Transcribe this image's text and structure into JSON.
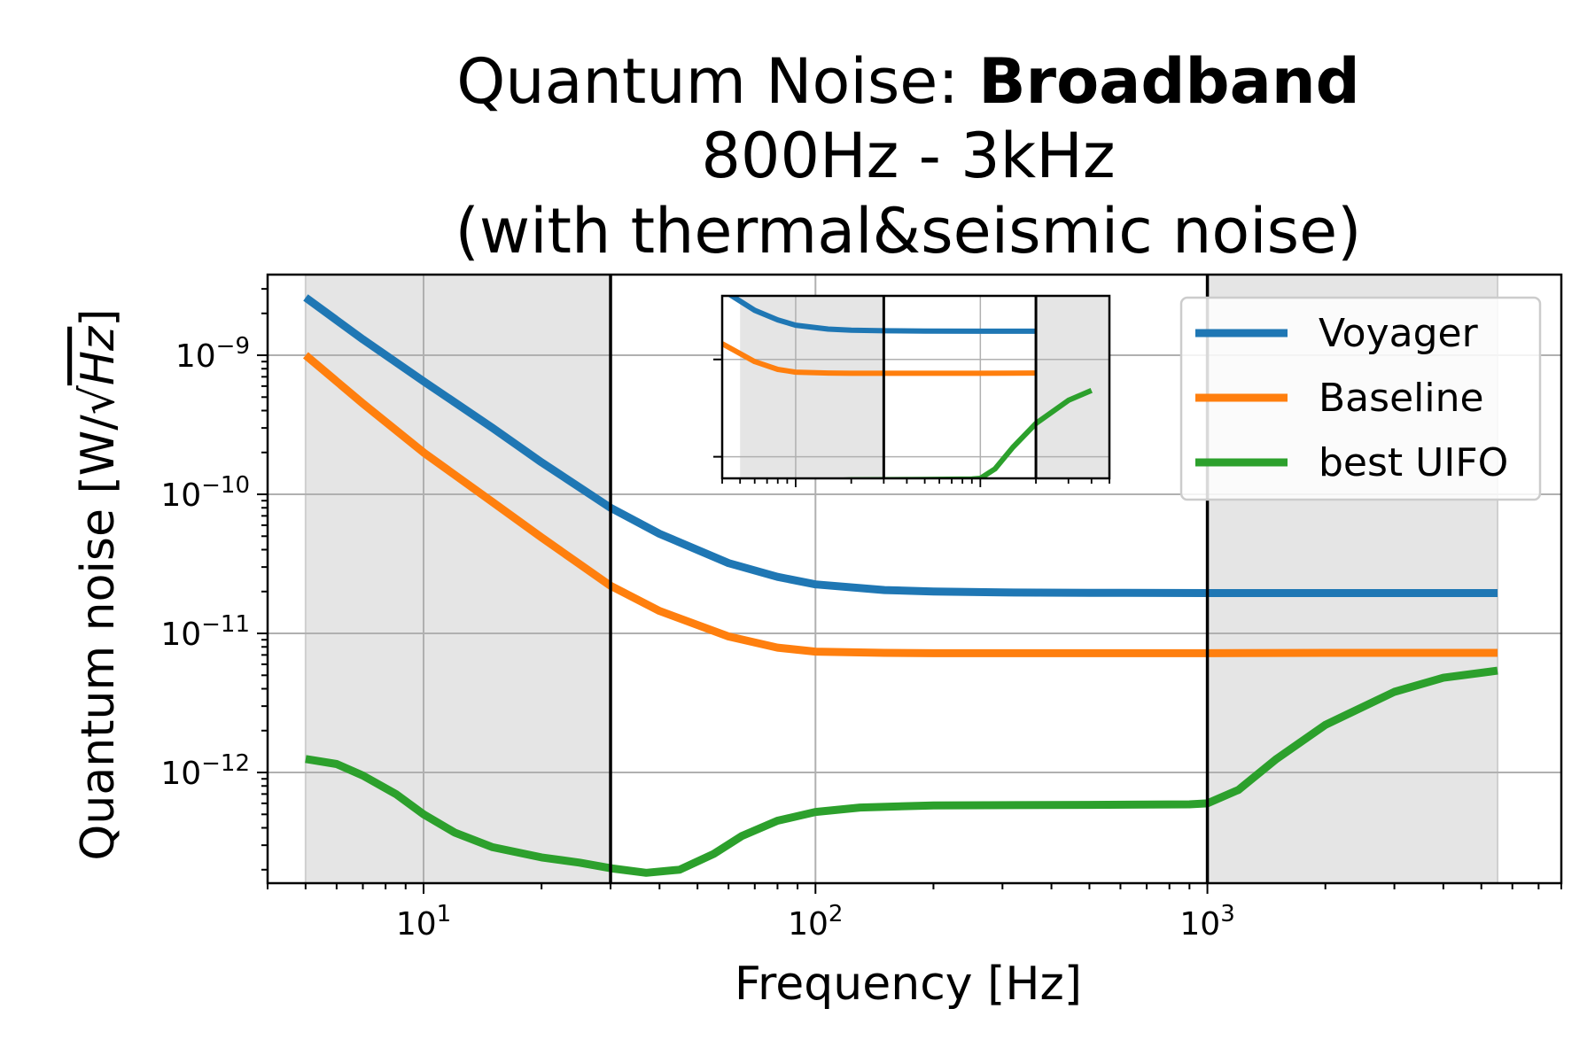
{
  "chart_data": {
    "type": "line",
    "title": {
      "prefix": "Quantum Noise: ",
      "bold": "Broadband",
      "line2": "800Hz - 3kHz",
      "line3": "(with thermal&seismic noise)"
    },
    "xlabel": "Frequency [Hz]",
    "ylabel": {
      "prefix": "Quantum noise [W/",
      "radical": "√",
      "radicand": "Hz",
      "suffix": "]"
    },
    "xscale": "log",
    "yscale": "log",
    "xlim": [
      4,
      8000
    ],
    "ylim": [
      1.6e-13,
      3.8e-09
    ],
    "x_ticks": [
      {
        "value": 10,
        "base": "10",
        "exp": "1"
      },
      {
        "value": 100,
        "base": "10",
        "exp": "2"
      },
      {
        "value": 1000,
        "base": "10",
        "exp": "3"
      }
    ],
    "y_ticks": [
      {
        "value": 1e-12,
        "base": "10",
        "exp": "−12"
      },
      {
        "value": 1e-11,
        "base": "10",
        "exp": "−11"
      },
      {
        "value": 1e-10,
        "base": "10",
        "exp": "−10"
      },
      {
        "value": 1e-09,
        "base": "10",
        "exp": "−9"
      }
    ],
    "grid": true,
    "shaded_regions": [
      [
        5,
        30
      ],
      [
        1000,
        5500
      ]
    ],
    "vertical_lines": [
      30,
      1000
    ],
    "legend_position": "top-right",
    "series": [
      {
        "name": "Voyager",
        "color": "#1f77b4",
        "points": [
          [
            5,
            2.6e-09
          ],
          [
            7,
            1.3e-09
          ],
          [
            10,
            6.5e-10
          ],
          [
            15,
            3e-10
          ],
          [
            20,
            1.7e-10
          ],
          [
            30,
            8e-11
          ],
          [
            40,
            5.2e-11
          ],
          [
            60,
            3.2e-11
          ],
          [
            80,
            2.55e-11
          ],
          [
            100,
            2.25e-11
          ],
          [
            150,
            2.05e-11
          ],
          [
            200,
            2e-11
          ],
          [
            300,
            1.97e-11
          ],
          [
            500,
            1.96e-11
          ],
          [
            1000,
            1.95e-11
          ],
          [
            2000,
            1.95e-11
          ],
          [
            5500,
            1.95e-11
          ]
        ]
      },
      {
        "name": "Baseline",
        "color": "#ff7f0e",
        "points": [
          [
            5,
            1e-09
          ],
          [
            7,
            4.5e-10
          ],
          [
            10,
            2e-10
          ],
          [
            15,
            8.8e-11
          ],
          [
            20,
            4.9e-11
          ],
          [
            30,
            2.2e-11
          ],
          [
            40,
            1.45e-11
          ],
          [
            60,
            9.5e-12
          ],
          [
            80,
            7.9e-12
          ],
          [
            100,
            7.4e-12
          ],
          [
            150,
            7.25e-12
          ],
          [
            200,
            7.2e-12
          ],
          [
            500,
            7.2e-12
          ],
          [
            1000,
            7.2e-12
          ],
          [
            2000,
            7.25e-12
          ],
          [
            5500,
            7.25e-12
          ]
        ]
      },
      {
        "name": "best UIFO",
        "color": "#2ca02c",
        "points": [
          [
            5,
            1.25e-12
          ],
          [
            6,
            1.15e-12
          ],
          [
            7,
            9.5e-13
          ],
          [
            8.5,
            7e-13
          ],
          [
            10,
            5e-13
          ],
          [
            12,
            3.7e-13
          ],
          [
            15,
            2.9e-13
          ],
          [
            20,
            2.45e-13
          ],
          [
            25,
            2.25e-13
          ],
          [
            30,
            2.05e-13
          ],
          [
            37,
            1.9e-13
          ],
          [
            45,
            2e-13
          ],
          [
            55,
            2.6e-13
          ],
          [
            65,
            3.5e-13
          ],
          [
            80,
            4.5e-13
          ],
          [
            100,
            5.2e-13
          ],
          [
            130,
            5.6e-13
          ],
          [
            200,
            5.8e-13
          ],
          [
            500,
            5.85e-13
          ],
          [
            900,
            5.9e-13
          ],
          [
            1000,
            6e-13
          ],
          [
            1200,
            7.5e-13
          ],
          [
            1500,
            1.25e-12
          ],
          [
            2000,
            2.2e-12
          ],
          [
            3000,
            3.8e-12
          ],
          [
            4000,
            4.8e-12
          ],
          [
            5500,
            5.4e-12
          ]
        ]
      }
    ],
    "inset": {
      "xlim": [
        40,
        5000
      ],
      "ylim": [
        6e-13,
        4.5e-11
      ],
      "shaded_regions": [
        [
          50,
          300
        ],
        [
          2000,
          5000
        ]
      ],
      "vertical_lines": [
        300,
        2000
      ]
    }
  }
}
